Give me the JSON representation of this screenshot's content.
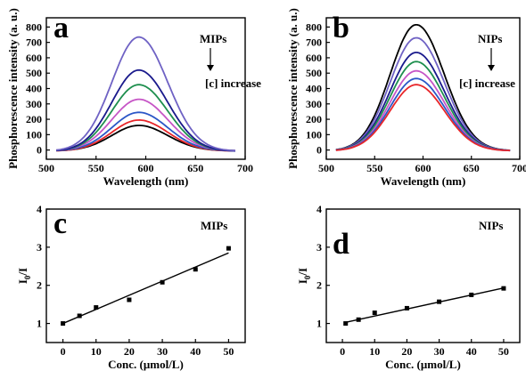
{
  "chart_data": [
    {
      "type": "line",
      "panel": "a",
      "annotations": [
        "MIPs",
        "[c] increase"
      ],
      "xlabel": "Wavelength (nm)",
      "ylabel": "Phosphorescence intensity (a. u.)",
      "xlim": [
        500,
        700
      ],
      "ylim": [
        -60,
        860
      ],
      "xticks": [
        500,
        550,
        600,
        650,
        700
      ],
      "yticks": [
        0,
        100,
        200,
        300,
        400,
        500,
        600,
        700,
        800
      ],
      "peak_wavelength": 593,
      "start_x": 510,
      "end_x": 690,
      "series": [
        {
          "color": "#000000",
          "peak": 160,
          "baseline": -5
        },
        {
          "color": "#e8262a",
          "peak": 195,
          "baseline": -6
        },
        {
          "color": "#2b57c7",
          "peak": 245,
          "baseline": -5
        },
        {
          "color": "#c655c6",
          "peak": 330,
          "baseline": -4
        },
        {
          "color": "#1e8f4e",
          "peak": 425,
          "baseline": -6
        },
        {
          "color": "#1a1a8c",
          "peak": 520,
          "baseline": -8
        },
        {
          "color": "#6f62c4",
          "peak": 735,
          "baseline": -7
        }
      ]
    },
    {
      "type": "line",
      "panel": "b",
      "annotations": [
        "NIPs",
        "[c] increase"
      ],
      "xlabel": "Wavelength (nm)",
      "ylabel": "Phosphorescence intensity (a. u.)",
      "xlim": [
        500,
        700
      ],
      "ylim": [
        -60,
        860
      ],
      "xticks": [
        500,
        550,
        600,
        650,
        700
      ],
      "yticks": [
        0,
        100,
        200,
        300,
        400,
        500,
        600,
        700,
        800
      ],
      "peak_wavelength": 593,
      "start_x": 510,
      "end_x": 690,
      "series": [
        {
          "color": "#000000",
          "peak": 815,
          "baseline": -5
        },
        {
          "color": "#6f62c4",
          "peak": 730,
          "baseline": -5
        },
        {
          "color": "#1a1a8c",
          "peak": 635,
          "baseline": -5
        },
        {
          "color": "#1e8f4e",
          "peak": 575,
          "baseline": -5
        },
        {
          "color": "#c655c6",
          "peak": 515,
          "baseline": -5
        },
        {
          "color": "#2b57c7",
          "peak": 465,
          "baseline": -5
        },
        {
          "color": "#e8262a",
          "peak": 425,
          "baseline": -5
        }
      ]
    },
    {
      "type": "scatter",
      "panel": "c",
      "annotation": "MIPs",
      "xlabel": "Conc. (μmol/L)",
      "ylabel_main": "I",
      "ylabel_sub": "0",
      "ylabel_tail": "/I",
      "xlim": [
        -5,
        55
      ],
      "ylim": [
        0.5,
        4
      ],
      "xticks": [
        0,
        10,
        20,
        30,
        40,
        50
      ],
      "yticks": [
        1,
        2,
        3,
        4
      ],
      "x": [
        0,
        5,
        10,
        20,
        30,
        40,
        50
      ],
      "y": [
        1.0,
        1.2,
        1.42,
        1.62,
        2.08,
        2.42,
        2.97
      ],
      "fit": {
        "x": [
          0,
          50
        ],
        "y": [
          1.0,
          2.85
        ]
      }
    },
    {
      "type": "scatter",
      "panel": "d",
      "annotation": "NIPs",
      "xlabel": "Conc. (μmol/L)",
      "ylabel_main": "I",
      "ylabel_sub": "0",
      "ylabel_tail": "/I",
      "xlim": [
        -5,
        55
      ],
      "ylim": [
        0.5,
        4
      ],
      "xticks": [
        0,
        10,
        20,
        30,
        40,
        50
      ],
      "yticks": [
        1,
        2,
        3,
        4
      ],
      "x": [
        1,
        5,
        10,
        20,
        30,
        40,
        50
      ],
      "y": [
        1.0,
        1.1,
        1.28,
        1.4,
        1.57,
        1.75,
        1.92
      ],
      "fit": {
        "x": [
          1,
          50
        ],
        "y": [
          1.03,
          1.93
        ]
      }
    }
  ]
}
